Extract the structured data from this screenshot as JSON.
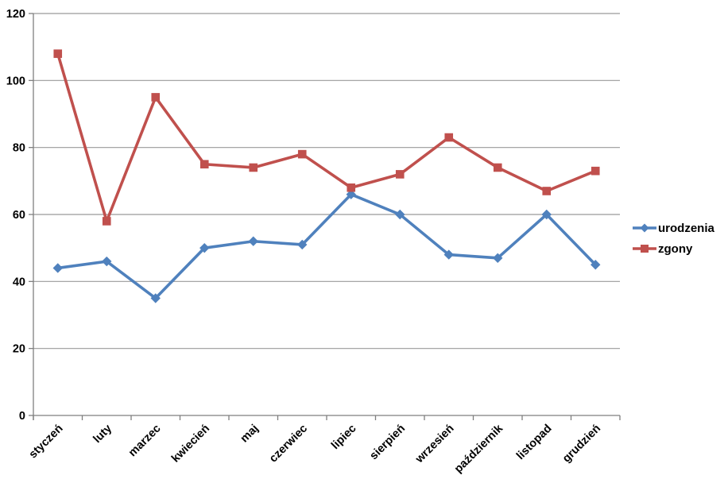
{
  "chart_data": {
    "type": "line",
    "title": "",
    "xlabel": "",
    "ylabel": "",
    "categories": [
      "styczeń",
      "luty",
      "marzec",
      "kwiecień",
      "maj",
      "czerwiec",
      "lipiec",
      "sierpień",
      "wrzesień",
      "październik",
      "listopad",
      "grudzień"
    ],
    "series": [
      {
        "name": "urodzenia",
        "color": "#4F81BD",
        "marker": "diamond",
        "values": [
          44,
          46,
          35,
          50,
          52,
          51,
          66,
          60,
          48,
          47,
          60,
          45
        ]
      },
      {
        "name": "zgony",
        "color": "#C0504D",
        "marker": "square",
        "values": [
          108,
          58,
          95,
          75,
          74,
          78,
          68,
          72,
          83,
          74,
          67,
          73
        ]
      }
    ],
    "ylim": [
      0,
      120
    ],
    "yticks": [
      0,
      20,
      40,
      60,
      80,
      100,
      120
    ],
    "grid": true,
    "legend_position": "right",
    "colors": {
      "gridline": "#999999",
      "axis": "#7F7F7F",
      "label": "#000000",
      "background": "#FFFFFF"
    }
  }
}
